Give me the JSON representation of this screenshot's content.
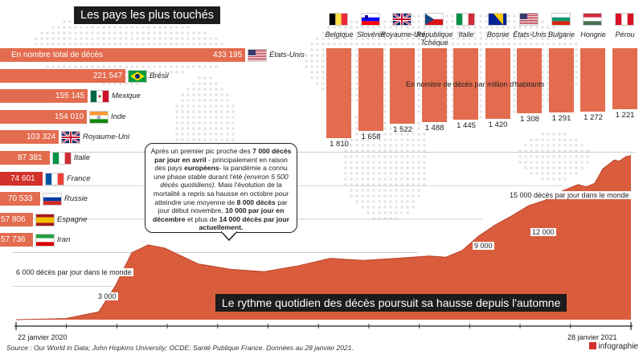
{
  "title": "Les pays les plus touchés",
  "hbar_unit": "En nombre total de décès",
  "vbar_unit": "En nombre de décès par million d'habitants",
  "headline": "Le rythme quotidien des décès poursuit sa hausse depuis l'automne",
  "callout": {
    "p1": "Après un premier pic proche des ",
    "p1b": "7 000 décès par jour en avril",
    "p2": " - principalement en raison des pays ",
    "p2b": "européens",
    "p3": "- la pandémie a connu une phase stable durant l'été ",
    "p3i": "(environ 5 500 décès quotidiens).",
    "p4": " Mais l'évolution de la mortalité a repris sa hausse en octobre pour atteindre une moyenne de ",
    "p4b": "8 000 décès",
    "p5": " par jour début novembre, ",
    "p5b": "10 000 par jour en décembre",
    "p6": " et plus de ",
    "p6b": "14 000 décès par jour actuellement."
  },
  "line_labels": {
    "l6000": "6 000  décès par jour dans le monde",
    "l3000": "3 000",
    "l9000": "9 000",
    "l12000": "12 000",
    "l15000": "15 000 décès par jour dans le monde"
  },
  "date_start": "22 janvier 2020",
  "date_end": "28 janvier 2021",
  "source": "Source : Our World in Data; John Hopkins University; OCDE; Santé Publique France. Données au 28 janvier 2021.",
  "brand": "infographie",
  "colors": {
    "bar": "#e36c4f",
    "highlight": "#d2302a",
    "area": "#d95c3c",
    "dark": "#1c1c1c"
  },
  "chart_data": [
    {
      "type": "bar",
      "orientation": "horizontal",
      "title": "En nombre total de décès",
      "categories": [
        "États-Unis",
        "Brésil",
        "Mexique",
        "Inde",
        "Royaume-Uni",
        "Italie",
        "France",
        "Russie",
        "Espagne",
        "Iran"
      ],
      "values": [
        433195,
        221547,
        155145,
        154010,
        103324,
        87381,
        74601,
        70533,
        57806,
        57736
      ],
      "labels": [
        "433 195",
        "221 547",
        "155 145",
        "154 010",
        "103 324",
        "87 381",
        "74 601",
        "70 533",
        "57 806",
        "57 736"
      ],
      "highlight": "France"
    },
    {
      "type": "bar",
      "orientation": "vertical",
      "title": "En nombre de décès par million d'habitants",
      "categories": [
        "Belgique",
        "Slovénie",
        "Royaume-Uni",
        "République Tchèque",
        "Italie",
        "Bosnie",
        "États-Unis",
        "Bulgarie",
        "Hongrie",
        "Pérou"
      ],
      "values": [
        1810,
        1658,
        1522,
        1488,
        1445,
        1420,
        1308,
        1291,
        1272,
        1221
      ],
      "labels": [
        "1 810",
        "1 658",
        "1 522",
        "1 488",
        "1 445",
        "1 420",
        "1 308",
        "1 291",
        "1 272",
        "1 221"
      ]
    },
    {
      "type": "area",
      "x_range": [
        "22 janvier 2020",
        "28 janvier 2021"
      ],
      "y_reference_lines": [
        3000,
        6000,
        9000,
        12000,
        15000
      ],
      "series_days": [
        0,
        30,
        50,
        60,
        70,
        80,
        90,
        110,
        130,
        150,
        170,
        190,
        210,
        230,
        250,
        260,
        270,
        280,
        290,
        300,
        310,
        320,
        330,
        340,
        345,
        350,
        355,
        362,
        365,
        369,
        372
      ],
      "series": [
        {
          "values": [
            0,
            100,
            700,
            3000,
            6000,
            6700,
            6400,
            5000,
            4500,
            4300,
            4800,
            5500,
            5300,
            5500,
            5700,
            5600,
            6200,
            7500,
            8500,
            9300,
            10200,
            10700,
            11500,
            12100,
            11900,
            12200,
            13500,
            14300,
            14200,
            14600,
            14700
          ]
        }
      ]
    }
  ]
}
